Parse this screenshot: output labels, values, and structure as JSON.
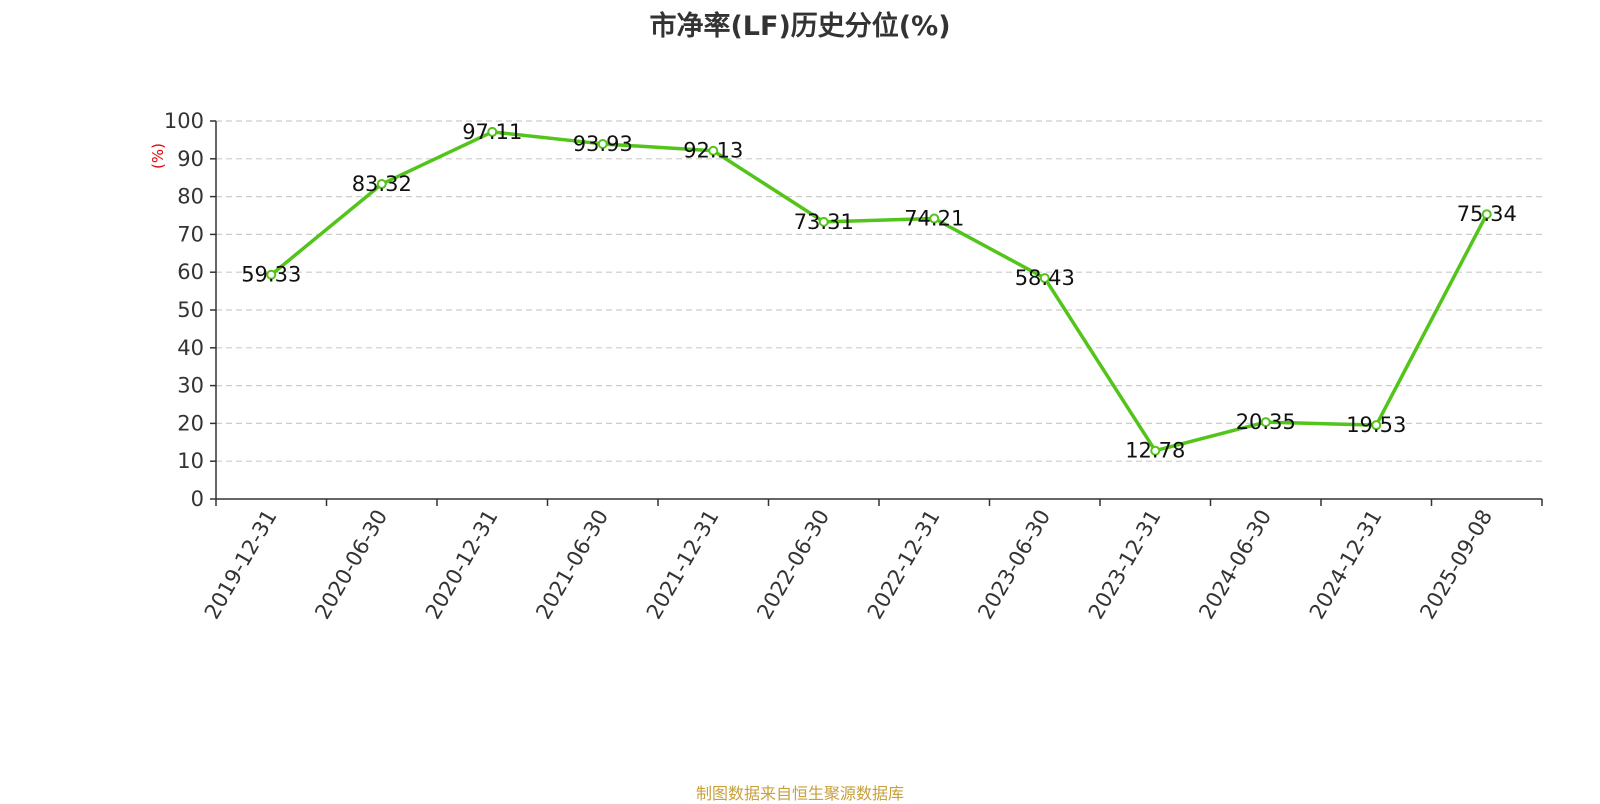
{
  "chart_data": {
    "type": "line",
    "title": "市净率(LF)历史分位(%)",
    "ylabel": "(%)",
    "xlabel": "",
    "ylim": [
      0,
      100
    ],
    "yticks": [
      0,
      10,
      20,
      30,
      40,
      50,
      60,
      70,
      80,
      90,
      100
    ],
    "grid": true,
    "categories": [
      "2019-12-31",
      "2020-06-30",
      "2020-12-31",
      "2021-06-30",
      "2021-12-31",
      "2022-06-30",
      "2022-12-31",
      "2023-06-30",
      "2023-12-31",
      "2024-06-30",
      "2024-12-31",
      "2025-09-08"
    ],
    "series": [
      {
        "values": [
          59.33,
          83.32,
          97.11,
          93.93,
          92.13,
          73.31,
          74.21,
          58.43,
          12.78,
          20.35,
          19.53,
          75.34
        ]
      }
    ],
    "data_labels": [
      "59.33",
      "83.32",
      "97.11",
      "93.93",
      "92.13",
      "73.31",
      "74.21",
      "58.43",
      "12.78",
      "20.35",
      "19.53",
      "75.34"
    ]
  },
  "colors": {
    "line": "#52c41a",
    "axis": "#333333",
    "grid": "#cccccc",
    "ylabel": "#e60000",
    "source": "#c8a03c"
  },
  "source_note": "制图数据来自恒生聚源数据库"
}
